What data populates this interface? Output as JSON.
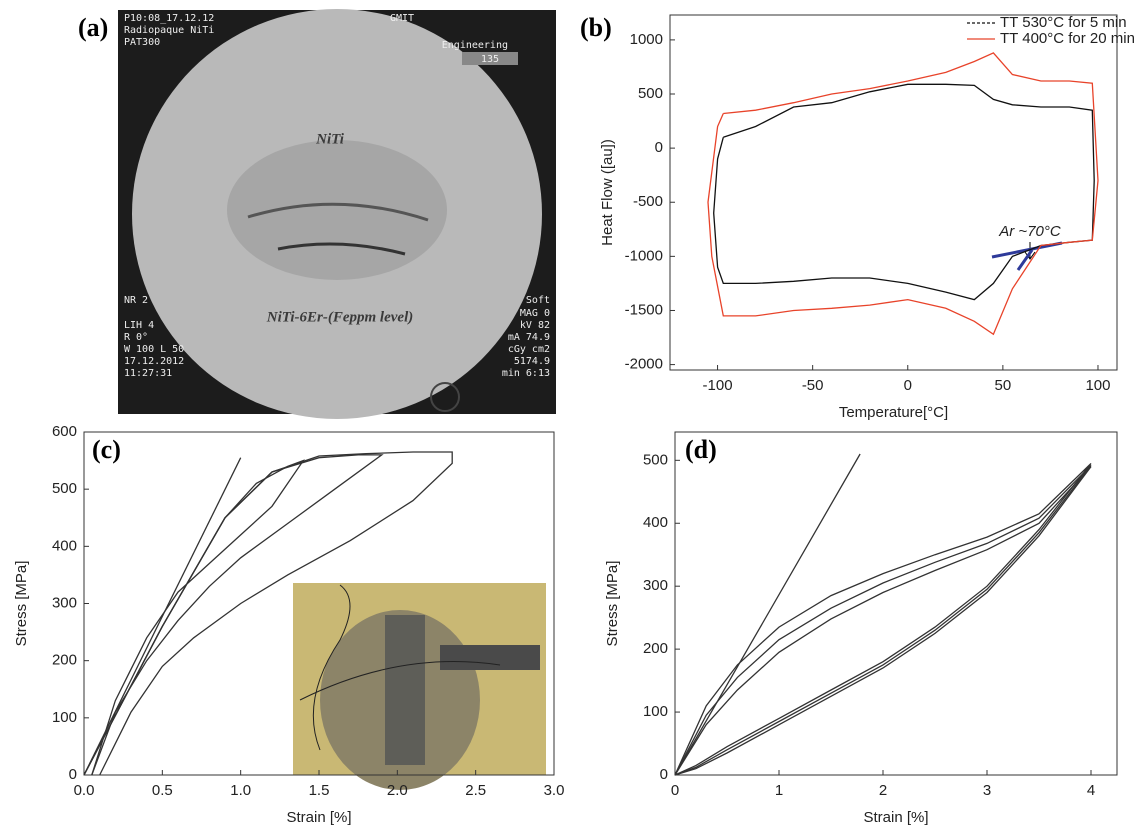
{
  "image_panel": {
    "panel_label": "(a)",
    "overlay_texts": [
      "P10:08_17.12.12",
      "Radiopaque NiTi",
      "PAT300",
      "GMIT",
      "Engineering",
      "135",
      "NR 2",
      "LIH 4",
      "R  0°",
      "W 100  L 50",
      "17.12.2012",
      "11:27:31",
      "Soft",
      "MAG 0",
      "kV  82",
      "mA  74.9",
      "cGy cm2",
      "5174.9",
      "min  6:13"
    ],
    "sample_top": "NiTi",
    "sample_bottom": "NiTi-6Er-(Feppm level)"
  },
  "chart_data": [
    {
      "type": "line",
      "panel_label": "(b)",
      "xlabel": "Temperature[°C]",
      "ylabel": "Heat Flow ([au])",
      "annotation": "Ar ~70°C",
      "legend": "upper right",
      "xlim": [
        -125,
        110
      ],
      "xticks": [
        -100,
        -50,
        0,
        50,
        100
      ],
      "ylim": [
        -2050,
        1230
      ],
      "yticks": [
        -2000,
        -1500,
        -1000,
        -500,
        0,
        500,
        1000
      ],
      "series": [
        {
          "name": "TT 530°C for 5 min",
          "color": "#111111",
          "x": [
            -97,
            -80,
            -60,
            -40,
            -20,
            0,
            20,
            35,
            45,
            55,
            70,
            85,
            97,
            98,
            97,
            85,
            70,
            55,
            45,
            35,
            20,
            0,
            -20,
            -40,
            -60,
            -80,
            -97,
            -100,
            -102,
            -100,
            -97
          ],
          "values": [
            100,
            200,
            380,
            420,
            520,
            590,
            590,
            580,
            450,
            400,
            380,
            380,
            350,
            -300,
            -850,
            -870,
            -900,
            -1000,
            -1250,
            -1400,
            -1330,
            -1250,
            -1200,
            -1200,
            -1230,
            -1250,
            -1250,
            -1100,
            -600,
            -100,
            100
          ]
        },
        {
          "name": "TT 400°C for 20 min",
          "color": "#e8432a",
          "x": [
            -97,
            -80,
            -60,
            -40,
            -20,
            0,
            20,
            35,
            45,
            55,
            70,
            85,
            97,
            100,
            97,
            85,
            70,
            55,
            45,
            35,
            20,
            0,
            -20,
            -40,
            -60,
            -80,
            -97,
            -103,
            -105,
            -100,
            -97
          ],
          "values": [
            320,
            350,
            420,
            500,
            550,
            620,
            700,
            800,
            880,
            680,
            620,
            620,
            600,
            -300,
            -850,
            -870,
            -900,
            -1300,
            -1720,
            -1600,
            -1480,
            -1400,
            -1450,
            -1480,
            -1500,
            -1550,
            -1550,
            -1000,
            -500,
            200,
            320
          ]
        }
      ]
    },
    {
      "type": "line",
      "panel_label": "(c)",
      "xlabel": "Strain [%]",
      "ylabel": "Stress [MPa]",
      "xlim": [
        0,
        3
      ],
      "xticks": [
        {
          "value": 0,
          "label": "0.0"
        },
        0.5,
        {
          "value": 1,
          "label": "1.0"
        },
        1.5,
        {
          "value": 2,
          "label": "2.0"
        },
        2.5,
        {
          "value": 3,
          "label": "3.0"
        }
      ],
      "ylim": [
        0,
        600
      ],
      "yticks": [
        0,
        100,
        200,
        300,
        400,
        500,
        600
      ],
      "series": [
        {
          "color": "#333333",
          "x": [
            0,
            1.0
          ],
          "values": [
            0,
            555
          ]
        },
        {
          "color": "#333333",
          "x": [
            0,
            0.5,
            0.9,
            1.1,
            1.3,
            1.4,
            1.2,
            1.0,
            0.8,
            0.6,
            0.4,
            0.2,
            0.05
          ],
          "values": [
            0,
            260,
            450,
            510,
            540,
            550,
            470,
            420,
            370,
            320,
            240,
            130,
            0
          ]
        },
        {
          "color": "#333333",
          "x": [
            0,
            0.5,
            0.9,
            1.2,
            1.5,
            1.75,
            1.9,
            1.6,
            1.3,
            1.0,
            0.8,
            0.6,
            0.4,
            0.2,
            0.05
          ],
          "values": [
            0,
            260,
            450,
            530,
            555,
            560,
            560,
            500,
            440,
            380,
            330,
            270,
            200,
            110,
            0
          ]
        },
        {
          "color": "#333333",
          "x": [
            0,
            0.5,
            0.9,
            1.2,
            1.5,
            1.8,
            2.1,
            2.35,
            2.35,
            2.1,
            1.7,
            1.3,
            1.0,
            0.7,
            0.5,
            0.3,
            0.1
          ],
          "values": [
            0,
            260,
            450,
            530,
            558,
            562,
            565,
            565,
            545,
            480,
            410,
            350,
            300,
            240,
            190,
            110,
            0
          ]
        }
      ]
    },
    {
      "type": "line",
      "panel_label": "(d)",
      "xlabel": "Strain [%]",
      "ylabel": "Stress [MPa]",
      "xlim": [
        0,
        4.25
      ],
      "xticks": [
        0,
        1,
        2,
        3,
        4
      ],
      "ylim": [
        0,
        545
      ],
      "yticks": [
        0,
        100,
        200,
        300,
        400,
        500
      ],
      "series": [
        {
          "color": "#333333",
          "x": [
            0,
            1.78
          ],
          "values": [
            0,
            510
          ]
        },
        {
          "color": "#333333",
          "x": [
            0,
            0.3,
            0.6,
            1,
            1.5,
            2,
            2.5,
            3,
            3.5,
            4,
            3.5,
            3,
            2.5,
            2,
            1.5,
            1,
            0.5,
            0.2,
            0
          ],
          "values": [
            0,
            110,
            175,
            235,
            285,
            320,
            350,
            378,
            415,
            495,
            390,
            300,
            235,
            180,
            135,
            90,
            45,
            15,
            0
          ]
        },
        {
          "color": "#333333",
          "x": [
            0,
            0.3,
            0.6,
            1,
            1.5,
            2,
            2.5,
            3,
            3.5,
            4,
            3.5,
            3,
            2.5,
            2,
            1.5,
            1,
            0.5,
            0.2,
            0
          ],
          "values": [
            0,
            95,
            155,
            215,
            265,
            305,
            338,
            368,
            408,
            492,
            385,
            295,
            230,
            175,
            130,
            85,
            40,
            12,
            0
          ]
        },
        {
          "color": "#333333",
          "x": [
            0,
            0.3,
            0.6,
            1,
            1.5,
            2,
            2.5,
            3,
            3.5,
            4,
            3.5,
            3,
            2.5,
            2,
            1.5,
            1,
            0.5,
            0.2,
            0
          ],
          "values": [
            0,
            80,
            135,
            195,
            248,
            290,
            325,
            358,
            400,
            490,
            380,
            290,
            225,
            170,
            125,
            80,
            35,
            10,
            0
          ]
        }
      ]
    }
  ]
}
